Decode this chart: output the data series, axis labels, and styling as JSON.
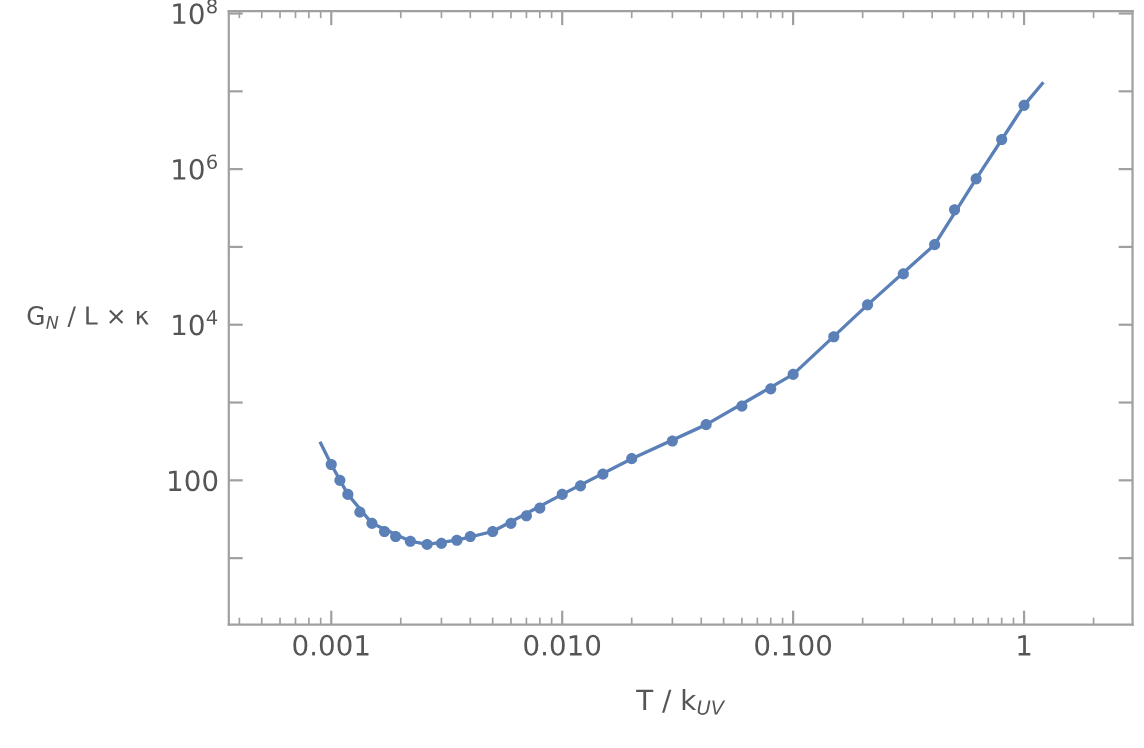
{
  "chart_data": {
    "type": "scatter",
    "xlabel": "T / k$_{UV}$",
    "ylabel": "G$_{N}$ / L × κ",
    "log": "xy",
    "marker": "circle",
    "xlim": [
      0.00036,
      2.95
    ],
    "ylim": [
      1.4,
      107000000.0
    ],
    "xticks": [
      {
        "value": 0.001,
        "label": "0.001"
      },
      {
        "value": 0.01,
        "label": "0.010"
      },
      {
        "value": 0.1,
        "label": "0.100"
      },
      {
        "value": 1,
        "label": "1"
      }
    ],
    "yticks": [
      {
        "value": 10,
        "label": null
      },
      {
        "value": 100,
        "label": "100"
      },
      {
        "value": 1000,
        "label": null
      },
      {
        "value": 10000,
        "label": "10$^{4}$"
      },
      {
        "value": 100000,
        "label": null
      },
      {
        "value": 1000000,
        "label": "10$^{6}$"
      },
      {
        "value": 10000000,
        "label": null
      },
      {
        "value": 100000000,
        "label": "10$^{8}$"
      }
    ],
    "series": [
      {
        "type": "line",
        "marker": "none",
        "color": "#5b80b8",
        "x": [
          0.0009,
          0.001,
          0.00118,
          0.0015,
          0.0022,
          0.0026,
          0.0035,
          0.005,
          0.01,
          0.02,
          0.042,
          0.1,
          0.21,
          0.41,
          0.62,
          1.0,
          1.2
        ],
        "values": [
          300,
          160,
          66,
          28,
          16.5,
          15,
          17,
          22,
          66,
          190,
          520,
          2300,
          18000,
          107000,
          750000,
          6600000,
          12600000
        ]
      },
      {
        "color": "#5b80b8",
        "x": [
          0.001,
          0.00109,
          0.00118,
          0.00133,
          0.0015,
          0.0017,
          0.0019,
          0.0022,
          0.0026,
          0.003,
          0.0035,
          0.004,
          0.005,
          0.006,
          0.007,
          0.008,
          0.01,
          0.012,
          0.015,
          0.02,
          0.03,
          0.042,
          0.06,
          0.08,
          0.1,
          0.15,
          0.21,
          0.3,
          0.41,
          0.5,
          0.62,
          0.8,
          1.0
        ],
        "values": [
          160,
          100,
          66,
          39,
          28,
          22,
          19,
          16.5,
          15,
          15.5,
          17,
          19,
          22,
          28,
          35,
          44,
          66,
          85,
          120,
          190,
          320,
          520,
          900,
          1500,
          2300,
          7000,
          18000,
          45000,
          107000,
          300000,
          750000,
          2400000,
          6600000
        ]
      }
    ]
  }
}
